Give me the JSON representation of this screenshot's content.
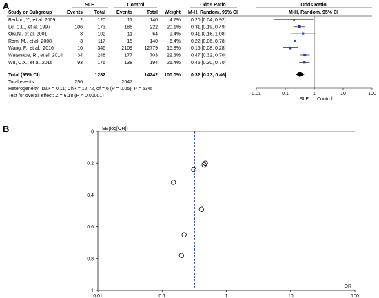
{
  "panel_a": {
    "letter": "A",
    "header": {
      "study_col": "Study or Subgroup",
      "group1": "SLE",
      "group2": "Control",
      "events": "Events",
      "total": "Total",
      "weight": "Weight",
      "or_label": "Odds Ratio",
      "or_method": "M-H, Random, 95% CI",
      "plot_label": "Odds Ratio",
      "plot_method": "M-H, Random, 95% CI"
    },
    "rows": [
      {
        "study": "Berkun, Y., et al. 2009",
        "e1": "2",
        "t1": "120",
        "e2": "11",
        "t2": "140",
        "weight": "4.7%",
        "ci": "0.20 [0.04, 0.92]"
      },
      {
        "study": "Lu, C.L., et al. 1997",
        "e1": "106",
        "t1": "173",
        "e2": "186",
        "t2": "222",
        "weight": "20.1%",
        "ci": "0.31 [0.19, 0.49]"
      },
      {
        "study": "Qiu,N., et al. 2001",
        "e1": "8",
        "t1": "102",
        "e2": "11",
        "t2": "64",
        "weight": "9.4%",
        "ci": "0.41 [0.16, 1.08]"
      },
      {
        "study": "Ram, M., et al. 2008",
        "e1": "3",
        "t1": "117",
        "e2": "15",
        "t2": "140",
        "weight": "6.4%",
        "ci": "0.22 [0.06, 0.78]"
      },
      {
        "study": "Wang, F., et al., 2016",
        "e1": "10",
        "t1": "346",
        "e2": "2109",
        "t2": "12779",
        "weight": "15.8%",
        "ci": "0.15 [0.08, 0.28]"
      },
      {
        "study": "Watanabe, R., et al. 2014",
        "e1": "34",
        "t1": "248",
        "e2": "177",
        "t2": "703",
        "weight": "22.3%",
        "ci": "0.47 [0.32, 0.70]"
      },
      {
        "study": "Wu, C.X., et al. 2015",
        "e1": "93",
        "t1": "176",
        "e2": "138",
        "t2": "194",
        "weight": "21.4%",
        "ci": "0.45 [0.30, 0.70]"
      }
    ],
    "total_row": {
      "label": "Total (95% CI)",
      "t1": "1282",
      "t2": "14242",
      "weight": "100.0%",
      "ci": "0.32 [0.23, 0.46]"
    },
    "events_row": {
      "label": "Total events",
      "e1": "256",
      "e2": "2647"
    },
    "heterogeneity": "Heterogeneity: Tau² = 0.11; Chi² = 12.72, df = 6 (P = 0.05); I² = 53%",
    "overall_test": "Test for overall effect: Z = 6.18 (P < 0.00001)",
    "axis_ticks": [
      "0.01",
      "0.1",
      "1",
      "10",
      "100"
    ],
    "favours_left": "SLE",
    "favours_right": "Control"
  },
  "panel_b": {
    "letter": "B",
    "ylabel": "SE(log[OR])",
    "xlabel": "OR",
    "yticks": [
      "0",
      "0.2",
      "0.4",
      "0.6",
      "0.8",
      "1"
    ],
    "xticks": [
      "0.01",
      "0.1",
      "1",
      "10",
      "100"
    ]
  },
  "colors": {
    "square": "#1f3fbf",
    "diamond": "#000000",
    "dashed_line": "#1f3fbf"
  },
  "chart_data": [
    {
      "type": "forest",
      "x_scale": "log",
      "xlim": [
        0.01,
        100
      ],
      "categories": [
        "Berkun, Y., et al. 2009",
        "Lu, C.L., et al. 1997",
        "Qiu,N., et al. 2001",
        "Ram, M., et al. 2008",
        "Wang, F., et al., 2016",
        "Watanabe, R., et al. 2014",
        "Wu, C.X., et al. 2015"
      ],
      "or": [
        0.2,
        0.31,
        0.41,
        0.22,
        0.15,
        0.47,
        0.45
      ],
      "ci_low": [
        0.04,
        0.19,
        0.16,
        0.06,
        0.08,
        0.32,
        0.3
      ],
      "ci_high": [
        0.92,
        0.49,
        1.08,
        0.78,
        0.28,
        0.7,
        0.7
      ],
      "weight": [
        4.7,
        20.1,
        9.4,
        6.4,
        15.8,
        22.3,
        21.4
      ],
      "pooled": {
        "or": 0.32,
        "ci_low": 0.23,
        "ci_high": 0.46
      }
    },
    {
      "type": "scatter",
      "x_scale": "log",
      "xlim": [
        0.01,
        100
      ],
      "ylim": [
        1,
        0
      ],
      "xlabel": "OR",
      "ylabel": "SE(log[OR])",
      "x": [
        0.2,
        0.31,
        0.41,
        0.22,
        0.15,
        0.47,
        0.45
      ],
      "y": [
        0.78,
        0.24,
        0.49,
        0.65,
        0.32,
        0.2,
        0.21
      ],
      "reference_line_x": 0.32
    }
  ]
}
